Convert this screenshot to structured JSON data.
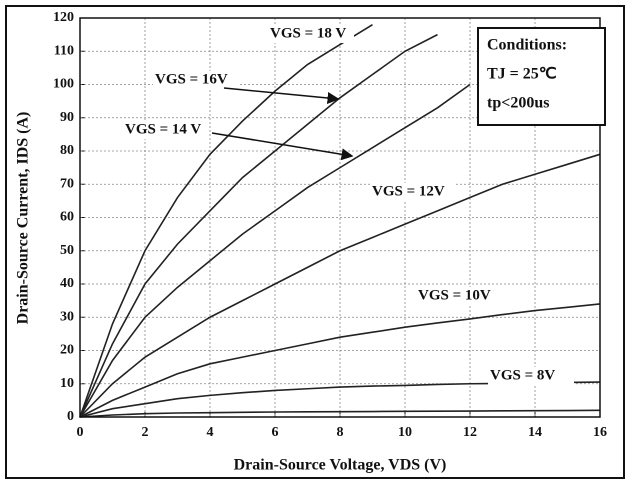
{
  "chart_data": {
    "type": "line",
    "x_label": "Drain-Source Voltage, VDS (V)",
    "y_label": "Drain-Source Current, IDS (A)",
    "annotations": [
      "Conditions:",
      "TJ = 25℃",
      "tp<200us"
    ],
    "x": [
      0,
      1,
      2,
      3,
      4,
      5,
      6,
      7,
      8,
      9,
      10,
      11,
      12,
      13,
      14,
      15,
      16
    ],
    "series": [
      {
        "name": "VGS = 18 V",
        "color": "#222222",
        "values": [
          0,
          28,
          50,
          66,
          79,
          89,
          98,
          106,
          112,
          118,
          null,
          null,
          null,
          null,
          null,
          null,
          null
        ]
      },
      {
        "name": "VGS = 16V",
        "color": "#222222",
        "values": [
          0,
          22,
          40,
          52,
          62,
          72,
          80,
          88,
          96,
          103,
          110,
          115,
          null,
          null,
          null,
          null,
          null
        ]
      },
      {
        "name": "VGS = 14 V",
        "color": "#222222",
        "values": [
          0,
          17,
          30,
          39,
          47,
          55,
          62,
          69,
          75,
          81,
          87,
          93,
          100,
          null,
          null,
          null,
          null
        ]
      },
      {
        "name": "VGS = 12V",
        "color": "#222222",
        "values": [
          0,
          10,
          18,
          24,
          30,
          35,
          40,
          45,
          50,
          54,
          58,
          62,
          66,
          70,
          73,
          76,
          79
        ]
      },
      {
        "name": "VGS = 10V",
        "color": "#222222",
        "values": [
          0,
          5,
          9,
          13,
          16,
          18,
          20,
          22,
          24,
          25.5,
          27,
          28.3,
          29.5,
          30.8,
          32,
          33,
          34
        ]
      },
      {
        "name": "VGS = 8V",
        "color": "#222222",
        "values": [
          0,
          2.5,
          4,
          5.5,
          6.5,
          7.3,
          8,
          8.5,
          9,
          9.3,
          9.5,
          9.8,
          10,
          10.1,
          10.2,
          10.4,
          10.5
        ]
      },
      {
        "color": "#222222",
        "values": [
          0,
          0.6,
          1,
          1.2,
          1.3,
          1.4,
          1.5,
          1.55,
          1.6,
          1.65,
          1.7,
          1.75,
          1.8,
          1.85,
          1.9,
          1.95,
          2
        ]
      }
    ],
    "xlim": [
      0,
      16
    ],
    "xticks": [
      0,
      2,
      4,
      6,
      8,
      10,
      12,
      14,
      16
    ],
    "ylim": [
      0,
      120
    ],
    "yticks": [
      0,
      10,
      20,
      30,
      40,
      50,
      60,
      70,
      80,
      90,
      100,
      110,
      120
    ],
    "grid": true
  }
}
